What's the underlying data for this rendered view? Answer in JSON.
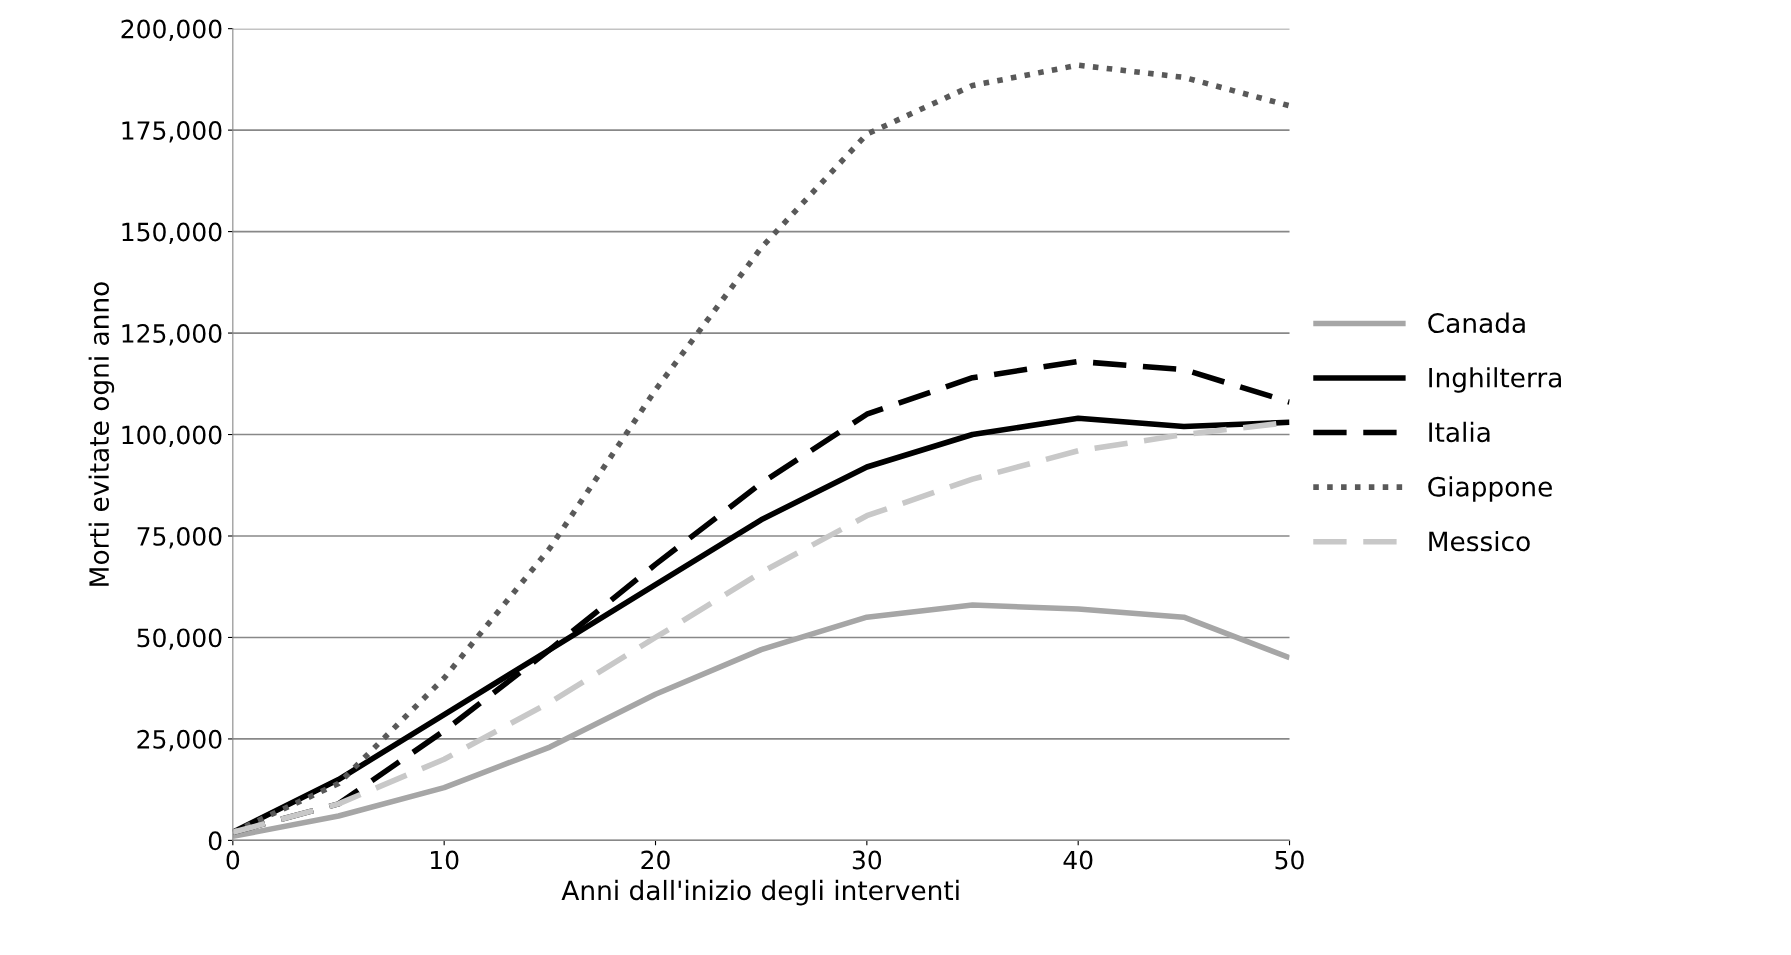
{
  "chart_data": {
    "type": "line",
    "xlabel": "Anni dall'inizio degli interventi",
    "ylabel": "Morti evitate ogni anno",
    "x": [
      0,
      5,
      10,
      15,
      20,
      25,
      30,
      35,
      40,
      45,
      50
    ],
    "xlim": [
      0,
      50
    ],
    "xticks": [
      0,
      10,
      20,
      30,
      40,
      50
    ],
    "ylim": [
      0,
      200000
    ],
    "yticks": [
      {
        "value": 0,
        "label": "0"
      },
      {
        "value": 25000,
        "label": "25,000"
      },
      {
        "value": 50000,
        "label": "50,000"
      },
      {
        "value": 75000,
        "label": "75,000"
      },
      {
        "value": 100000,
        "label": "100,000"
      },
      {
        "value": 125000,
        "label": "125,000"
      },
      {
        "value": 150000,
        "label": "150,000"
      },
      {
        "value": 175000,
        "label": "175,000"
      },
      {
        "value": 200000,
        "label": "200,000"
      }
    ],
    "grid": "y",
    "legend": "right",
    "marker": "none",
    "series": [
      {
        "name": "Canada",
        "color": "#a6a6a6",
        "line_style": "solid",
        "values": [
          1000,
          6000,
          13000,
          23000,
          36000,
          47000,
          55000,
          58000,
          57000,
          55000,
          45000
        ]
      },
      {
        "name": "Inghilterra",
        "color": "#000000",
        "line_style": "solid",
        "values": [
          2000,
          15000,
          31000,
          47000,
          63000,
          79000,
          92000,
          100000,
          104000,
          102000,
          103000
        ]
      },
      {
        "name": "Italia",
        "color": "#000000",
        "line_style": "dashed",
        "values": [
          2000,
          9000,
          27000,
          47000,
          68000,
          88000,
          105000,
          114000,
          118000,
          116000,
          108000
        ]
      },
      {
        "name": "Giappone",
        "color": "#595959",
        "line_style": "dotted",
        "values": [
          2000,
          14000,
          40000,
          72000,
          111000,
          146000,
          174000,
          186000,
          191000,
          188000,
          181000
        ]
      },
      {
        "name": "Messico",
        "color": "#c8c8c8",
        "line_style": "dashed",
        "values": [
          2000,
          9000,
          20000,
          34000,
          50000,
          66000,
          80000,
          89000,
          96000,
          100000,
          103000
        ]
      }
    ]
  }
}
